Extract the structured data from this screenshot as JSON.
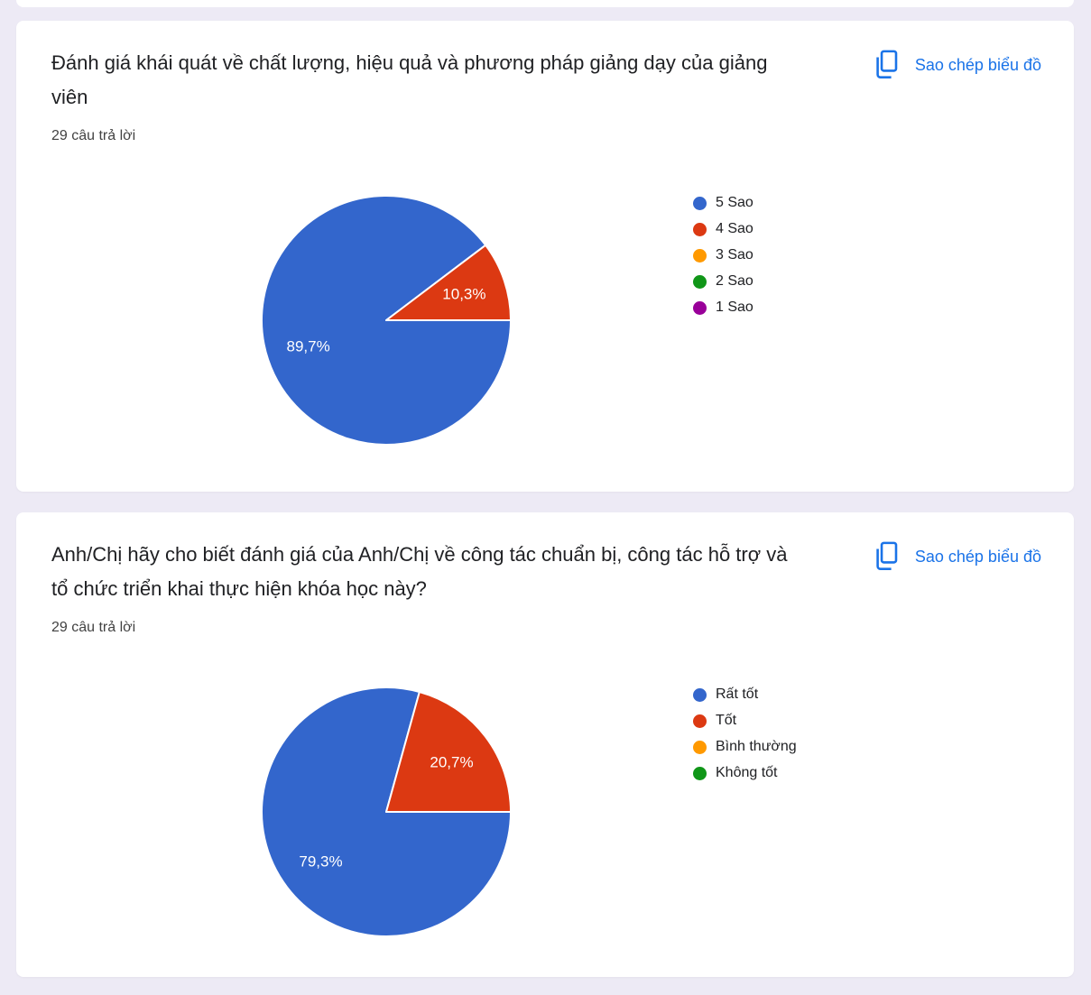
{
  "page": {
    "background_color": "#EDEAF5",
    "card_color": "#FFFFFF",
    "accent_color": "#1A73E8"
  },
  "cards": [
    {
      "title": "Đánh giá khái quát về chất lượng, hiệu quả và phương pháp giảng dạy của giảng viên",
      "responses_label": "29 câu trả lời",
      "copy_button": {
        "label": "Sao chép biểu đồ",
        "icon": "copy-icon"
      },
      "chart_data": {
        "type": "pie",
        "categories": [
          "5 Sao",
          "4 Sao",
          "3 Sao",
          "2 Sao",
          "1 Sao"
        ],
        "values": [
          89.7,
          10.3,
          0,
          0,
          0
        ],
        "value_labels": [
          "89,7%",
          "10,3%",
          "",
          "",
          ""
        ],
        "colors": [
          "#3366CC",
          "#DC3912",
          "#FF9900",
          "#109618",
          "#990099"
        ],
        "legend_position": "right",
        "start_angle": "3-oclock-clockwise",
        "slice_border_color": "#FFFFFF"
      }
    },
    {
      "title": "Anh/Chị hãy cho biết đánh giá của Anh/Chị về công tác chuẩn bị, công tác hỗ trợ và tổ chức triển khai thực hiện khóa học này?",
      "responses_label": "29 câu trả lời",
      "copy_button": {
        "label": "Sao chép biểu đồ",
        "icon": "copy-icon"
      },
      "chart_data": {
        "type": "pie",
        "categories": [
          "Rất tốt",
          "Tốt",
          "Bình thường",
          "Không tốt"
        ],
        "values": [
          79.3,
          20.7,
          0,
          0
        ],
        "value_labels": [
          "79,3%",
          "20,7%",
          "",
          ""
        ],
        "colors": [
          "#3366CC",
          "#DC3912",
          "#FF9900",
          "#109618"
        ],
        "legend_position": "right",
        "start_angle": "3-oclock-clockwise",
        "slice_border_color": "#FFFFFF"
      }
    }
  ]
}
